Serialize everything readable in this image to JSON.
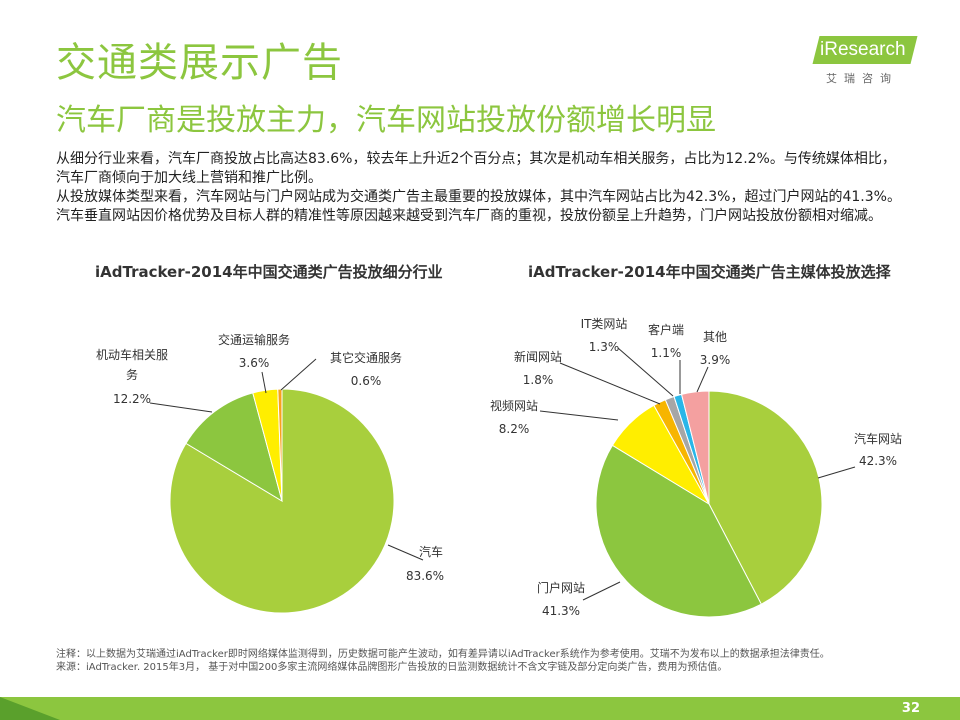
{
  "header": {
    "title": "交通类展示广告",
    "subtitle": "汽车厂商是投放主力，汽车网站投放份额增长明显",
    "logo_text": "iResearch",
    "logo_cn": "艾瑞咨询"
  },
  "body_text": [
    "从细分行业来看，汽车厂商投放占比高达83.6%，较去年上升近2个百分点；其次是机动车相关服务，占比为12.2%。与传统媒体相比，汽车厂商倾向于加大线上营销和推广比例。",
    "从投放媒体类型来看，汽车网站与门户网站成为交通类广告主最重要的投放媒体，其中汽车网站占比为42.3%，超过门户网站的41.3%。汽车垂直网站因价格优势及目标人群的精准性等原因越来越受到汽车厂商的重视，投放份额呈上升趋势，门户网站投放份额相对缩减。"
  ],
  "colors": {
    "accent": "#8cc63f",
    "lime": "#a8cf3d",
    "green": "#8cc63f",
    "yellow": "#ffee00",
    "orange": "#f7b500",
    "red": "#e84e40",
    "gray": "#a6a6a6",
    "cyan": "#29b6e8",
    "pink": "#f4a0a0"
  },
  "chart_data": [
    {
      "type": "pie",
      "title": "iAdTracker-2014年中国交通类广告投放细分行业",
      "slices": [
        {
          "label": "汽车",
          "value": 83.6,
          "display": "83.6%",
          "color": "#a8cf3d"
        },
        {
          "label": "机动车相关服务",
          "value": 12.2,
          "display": "12.2%",
          "color": "#8cc63f"
        },
        {
          "label": "交通运输服务",
          "value": 3.6,
          "display": "3.6%",
          "color": "#ffee00"
        },
        {
          "label": "其它交通服务",
          "value": 0.6,
          "display": "0.6%",
          "color": "#f7a21b"
        }
      ]
    },
    {
      "type": "pie",
      "title": "iAdTracker-2014年中国交通类广告主媒体投放选择",
      "slices": [
        {
          "label": "汽车网站",
          "value": 42.3,
          "display": "42.3%",
          "color": "#a8cf3d"
        },
        {
          "label": "门户网站",
          "value": 41.3,
          "display": "41.3%",
          "color": "#8cc63f"
        },
        {
          "label": "视频网站",
          "value": 8.2,
          "display": "8.2%",
          "color": "#ffee00"
        },
        {
          "label": "新闻网站",
          "value": 1.8,
          "display": "1.8%",
          "color": "#f7b500"
        },
        {
          "label": "IT类网站",
          "value": 1.3,
          "display": "1.3%",
          "color": "#a6a6a6"
        },
        {
          "label": "客户端",
          "value": 1.1,
          "display": "1.1%",
          "color": "#29b6e8"
        },
        {
          "label": "其他",
          "value": 3.9,
          "display": "3.9%",
          "color": "#f4a0a0"
        }
      ]
    }
  ],
  "footnote": [
    "注释：以上数据为艾瑞通过iAdTracker即时网络媒体监测得到，历史数据可能产生波动，如有差异请以iAdTracker系统作为参考使用。艾瑞不为发布以上的数据承担法律责任。",
    "来源：iAdTracker. 2015年3月， 基于对中国200多家主流网络媒体品牌图形广告投放的日监测数据统计不含文字链及部分定向类广告，费用为预估值。"
  ],
  "page_number": "32"
}
